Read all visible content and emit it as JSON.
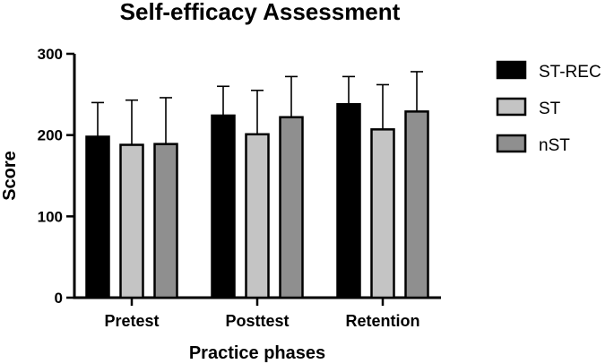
{
  "chart_data": {
    "type": "bar",
    "title": "Self-efficacy Assessment",
    "xlabel": "Practice phases",
    "ylabel": "Score",
    "ylim": [
      0,
      300
    ],
    "yticks": [
      0,
      100,
      200,
      300
    ],
    "categories": [
      "Pretest",
      "Posttest",
      "Retention"
    ],
    "series": [
      {
        "name": "ST-REC",
        "color": "#000000",
        "values": [
          198,
          224,
          238
        ],
        "error_upper": [
          42,
          36,
          34
        ]
      },
      {
        "name": "ST",
        "color": "#c4c4c4",
        "values": [
          188,
          201,
          207
        ],
        "error_upper": [
          55,
          54,
          55
        ]
      },
      {
        "name": "nST",
        "color": "#8f8f8f",
        "values": [
          189,
          222,
          229
        ],
        "error_upper": [
          57,
          50,
          49
        ]
      }
    ],
    "error_bars": "upper-only",
    "legend_position": "right"
  }
}
